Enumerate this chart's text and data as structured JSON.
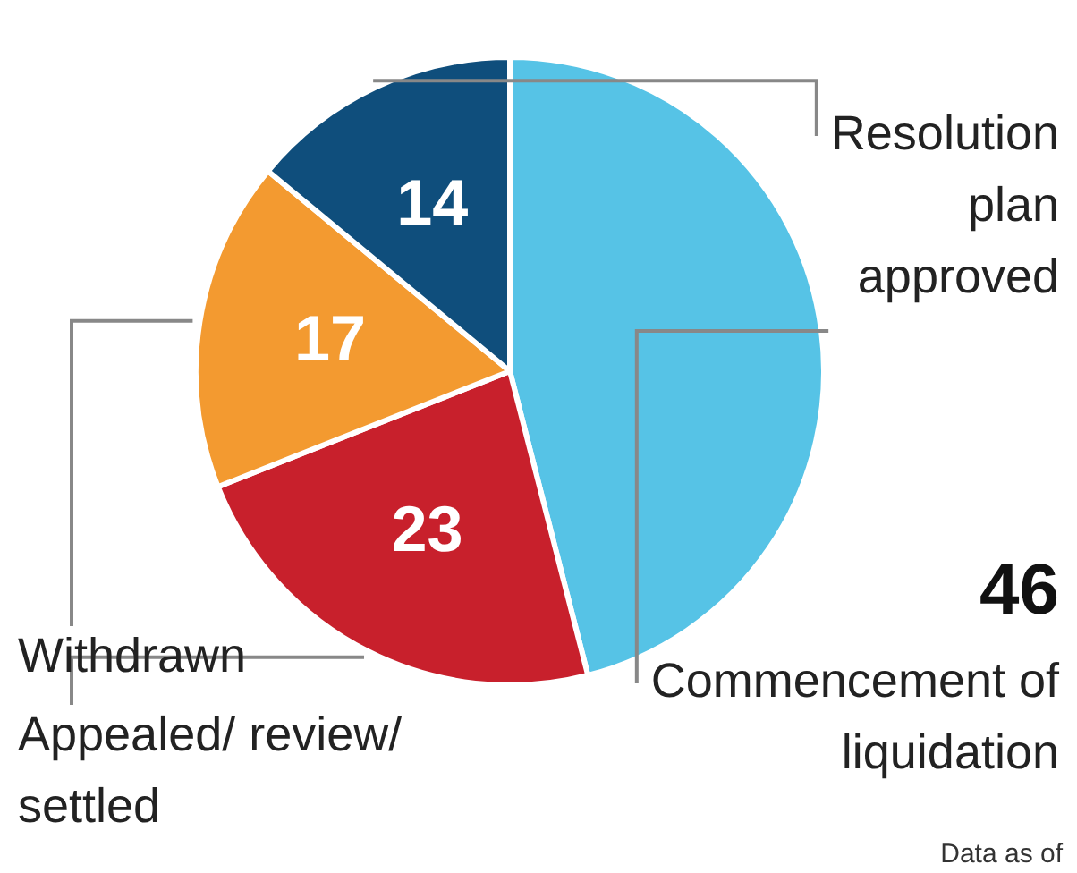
{
  "chart_data": {
    "type": "pie",
    "categories": [
      "Commencement of liquidation",
      "Appealed/ review/ settled",
      "Withdrawn",
      "Resolution plan approved"
    ],
    "values": [
      46,
      23,
      17,
      14
    ],
    "colors": [
      "#56c3e6",
      "#c8202c",
      "#f39a30",
      "#0f4e7c"
    ],
    "data_labels": true,
    "legend": false,
    "annotations": [
      "Data as of"
    ]
  }
}
